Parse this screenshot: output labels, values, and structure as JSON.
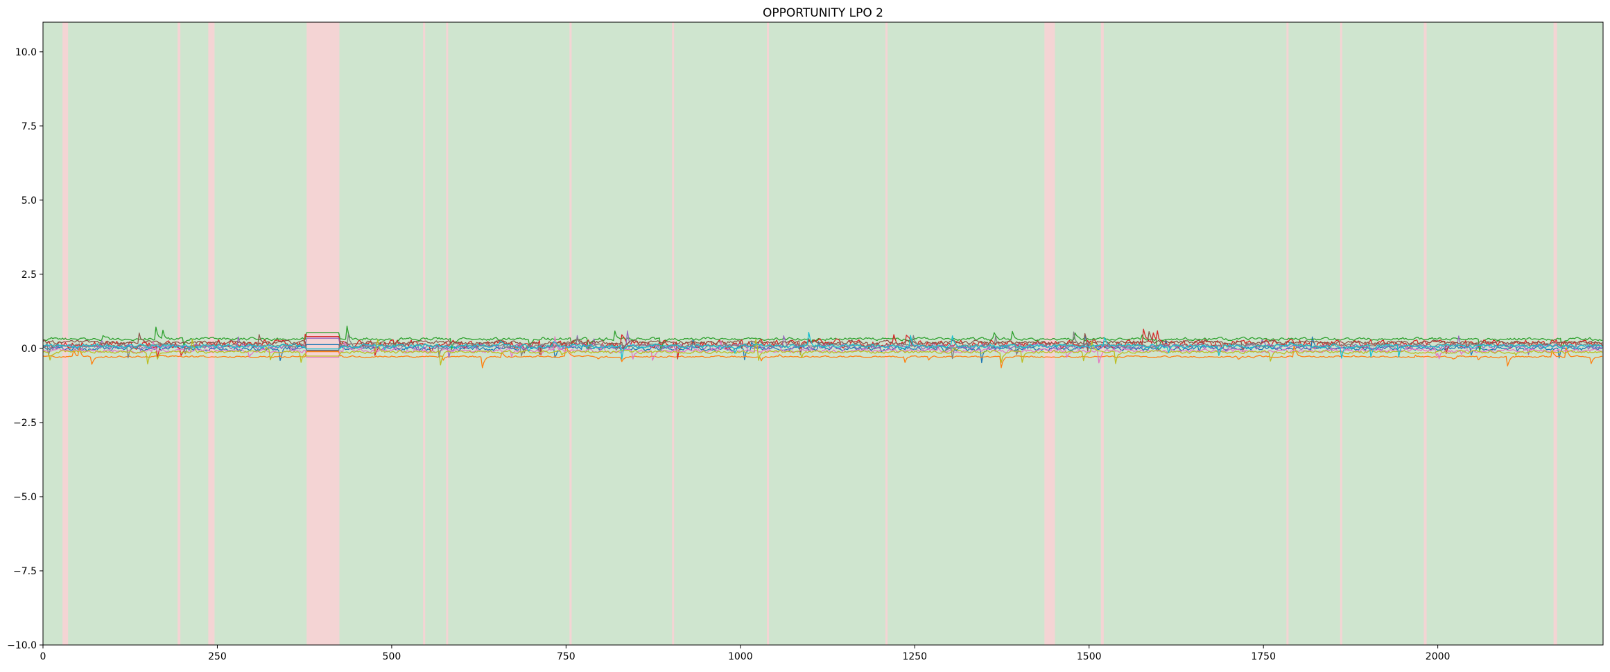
{
  "chart_data": {
    "type": "line",
    "title": "OPPORTUNITY  LPO 2",
    "xlabel": "",
    "ylabel": "",
    "xlim": [
      0,
      2237
    ],
    "ylim": [
      -10,
      11
    ],
    "xticks": [
      0,
      250,
      500,
      750,
      1000,
      1250,
      1500,
      1750,
      2000
    ],
    "yticks": [
      -10.0,
      -7.5,
      -5.0,
      -2.5,
      0.0,
      2.5,
      5.0,
      7.5,
      10.0
    ],
    "ytick_labels": [
      "−10.0",
      "−7.5",
      "−5.0",
      "−2.5",
      "0.0",
      "2.5",
      "5.0",
      "7.5",
      "10.0"
    ],
    "grid": false,
    "legend": "none",
    "background_color": "#cfe5cf",
    "anomaly_color": "#f4d4d4",
    "anomaly_spans": [
      [
        28,
        36
      ],
      [
        193,
        197
      ],
      [
        237,
        246
      ],
      [
        378,
        425
      ],
      [
        545,
        548
      ],
      [
        578,
        581
      ],
      [
        755,
        758
      ],
      [
        902,
        905
      ],
      [
        1038,
        1041
      ],
      [
        1208,
        1211
      ],
      [
        1436,
        1451
      ],
      [
        1517,
        1521
      ],
      [
        1783,
        1786
      ],
      [
        1860,
        1863
      ],
      [
        1980,
        1984
      ],
      [
        2166,
        2171
      ]
    ],
    "series": [
      {
        "color": "#1f77b4",
        "level": 0.0,
        "noise": 0.12
      },
      {
        "color": "#ff7f0e",
        "level": -0.28,
        "noise": 0.05
      },
      {
        "color": "#2ca02c",
        "level": 0.32,
        "noise": 0.08
      },
      {
        "color": "#d62728",
        "level": 0.15,
        "noise": 0.22
      },
      {
        "color": "#9467bd",
        "level": 0.05,
        "noise": 0.14
      },
      {
        "color": "#8c564b",
        "level": 0.2,
        "noise": 0.1
      },
      {
        "color": "#e377c2",
        "level": -0.08,
        "noise": 0.1
      },
      {
        "color": "#7f7f7f",
        "level": 0.1,
        "noise": 0.09
      },
      {
        "color": "#bcbd22",
        "level": -0.12,
        "noise": 0.08
      },
      {
        "color": "#17becf",
        "level": 0.08,
        "noise": 0.1
      }
    ]
  }
}
